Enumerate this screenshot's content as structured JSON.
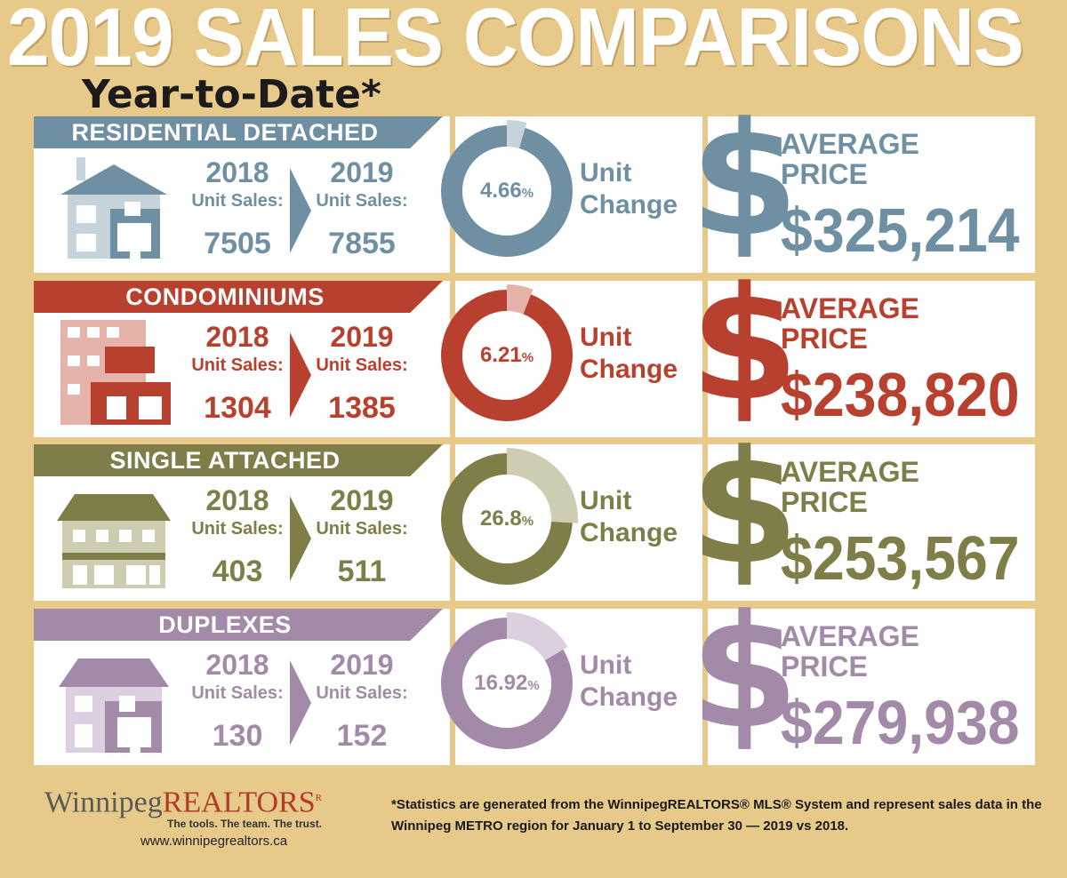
{
  "header": {
    "title": "2019 SALES COMPARISONS",
    "subtitle": "Year-to-Date*"
  },
  "labels": {
    "y2018": "2018",
    "y2019": "2019",
    "unit_sales": "Unit Sales:",
    "unit": "Unit",
    "change": "Change",
    "average": "AVERAGE",
    "price": "PRICE",
    "dollar": "$",
    "pct": "%"
  },
  "rows": [
    {
      "name": "RESIDENTIAL DETACHED",
      "sales_2018": "7505",
      "sales_2019": "7855",
      "change": "4.66",
      "avg_price": "$325,214",
      "color": "#6f8fa2",
      "light": "#c6d3db"
    },
    {
      "name": "CONDOMINIUMS",
      "sales_2018": "1304",
      "sales_2019": "1385",
      "change": "6.21",
      "avg_price": "$238,820",
      "color": "#b8402f",
      "light": "#e4b2a8"
    },
    {
      "name": "SINGLE ATTACHED",
      "sales_2018": "403",
      "sales_2019": "511",
      "change": "26.8",
      "avg_price": "$253,567",
      "color": "#7f7d48",
      "light": "#cfcdb1"
    },
    {
      "name": "DUPLEXES",
      "sales_2018": "130",
      "sales_2019": "152",
      "change": "16.92",
      "avg_price": "$279,938",
      "color": "#a28aa8",
      "light": "#dccfe0"
    }
  ],
  "chart_data": {
    "type": "table",
    "title": "2019 SALES COMPARISONS",
    "subtitle": "Year-to-Date*",
    "columns": [
      "2018 Unit Sales",
      "2019 Unit Sales",
      "Unit Change %",
      "Average Price"
    ],
    "categories": [
      "RESIDENTIAL DETACHED",
      "CONDOMINIUMS",
      "SINGLE ATTACHED",
      "DUPLEXES"
    ],
    "series": [
      {
        "name": "2018 Unit Sales",
        "values": [
          7505,
          1304,
          403,
          130
        ]
      },
      {
        "name": "2019 Unit Sales",
        "values": [
          7855,
          1385,
          511,
          152
        ]
      },
      {
        "name": "Unit Change",
        "values": [
          4.66,
          6.21,
          26.8,
          16.92
        ]
      },
      {
        "name": "Average Price",
        "values": [
          325214,
          238820,
          253567,
          279938
        ]
      }
    ]
  },
  "footer": {
    "logo_winnipeg": "Winnipeg",
    "logo_realtors": "REALTORS",
    "logo_reg": "R",
    "tagline": "The tools. The team. The trust.",
    "website": "www.winnipegrealtors.ca",
    "note": "*Statistics are generated from the WinnipegREALTORS® MLS® System and represent sales data in the Winnipeg METRO region for January 1 to September 30 — 2019 vs 2018."
  }
}
